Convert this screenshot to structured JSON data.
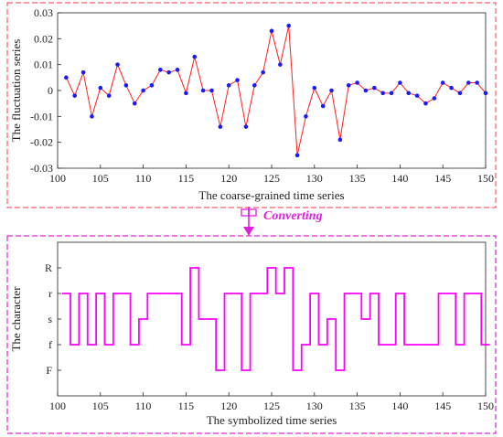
{
  "colors": {
    "top_frame": "#ff5a6e",
    "bottom_frame": "#e020e0",
    "top_line": "#ff2020",
    "top_marker": "#1a1aff",
    "bottom_line": "#ff00ff",
    "arrow": "#e020e0"
  },
  "arrow": {
    "label": "Converting",
    "icon": "blockchain-converter-icon"
  },
  "chart_data": [
    {
      "type": "line",
      "title": "",
      "xlabel": "The coarse-grained time series",
      "ylabel": "The fluctuation series",
      "xlim": [
        100,
        150
      ],
      "ylim": [
        -0.03,
        0.03
      ],
      "xticks": [
        100,
        105,
        110,
        115,
        120,
        125,
        130,
        135,
        140,
        145,
        150
      ],
      "yticks": [
        -0.03,
        -0.02,
        -0.01,
        0,
        0.01,
        0.02,
        0.03
      ],
      "ytick_labels": [
        "-0.03",
        "-0.02",
        "-0.01",
        "0",
        "0.01",
        "0.02",
        "0.03"
      ],
      "grid": false,
      "markers": true,
      "x": [
        101,
        102,
        103,
        104,
        105,
        106,
        107,
        108,
        109,
        110,
        111,
        112,
        113,
        114,
        115,
        116,
        117,
        118,
        119,
        120,
        121,
        122,
        123,
        124,
        125,
        126,
        127,
        128,
        129,
        130,
        131,
        132,
        133,
        134,
        135,
        136,
        137,
        138,
        139,
        140,
        141,
        142,
        143,
        144,
        145,
        146,
        147,
        148,
        149,
        150
      ],
      "values": [
        0.005,
        -0.002,
        0.007,
        -0.01,
        0.001,
        -0.002,
        0.01,
        0.002,
        -0.005,
        0.0,
        0.002,
        0.008,
        0.007,
        0.008,
        -0.001,
        0.013,
        0.0,
        0.0,
        -0.014,
        0.002,
        0.004,
        -0.014,
        0.002,
        0.007,
        0.023,
        0.01,
        0.025,
        -0.025,
        -0.01,
        0.001,
        -0.006,
        0.0,
        -0.019,
        0.002,
        0.003,
        0.0,
        0.001,
        -0.001,
        -0.001,
        0.003,
        -0.001,
        -0.002,
        -0.005,
        -0.003,
        0.003,
        0.001,
        -0.001,
        0.003,
        0.003,
        -0.001
      ]
    },
    {
      "type": "line",
      "step": true,
      "title": "",
      "xlabel": "The symbolized time series",
      "ylabel": "The character",
      "xlim": [
        100,
        150
      ],
      "categories": [
        "F",
        "f",
        "s",
        "r",
        "R"
      ],
      "xticks": [
        100,
        105,
        110,
        115,
        120,
        125,
        130,
        135,
        140,
        145,
        150
      ],
      "grid": false,
      "x": [
        101,
        102,
        103,
        104,
        105,
        106,
        107,
        108,
        109,
        110,
        111,
        112,
        113,
        114,
        115,
        116,
        117,
        118,
        119,
        120,
        121,
        122,
        123,
        124,
        125,
        126,
        127,
        128,
        129,
        130,
        131,
        132,
        133,
        134,
        135,
        136,
        137,
        138,
        139,
        140,
        141,
        142,
        143,
        144,
        145,
        146,
        147,
        148,
        149,
        150
      ],
      "values": [
        "r",
        "f",
        "r",
        "f",
        "r",
        "f",
        "r",
        "r",
        "f",
        "s",
        "r",
        "r",
        "r",
        "r",
        "f",
        "R",
        "s",
        "s",
        "F",
        "r",
        "r",
        "F",
        "r",
        "r",
        "R",
        "r",
        "R",
        "F",
        "f",
        "r",
        "f",
        "s",
        "F",
        "r",
        "r",
        "s",
        "r",
        "f",
        "f",
        "r",
        "f",
        "f",
        "f",
        "f",
        "r",
        "r",
        "f",
        "r",
        "r",
        "f"
      ]
    }
  ]
}
